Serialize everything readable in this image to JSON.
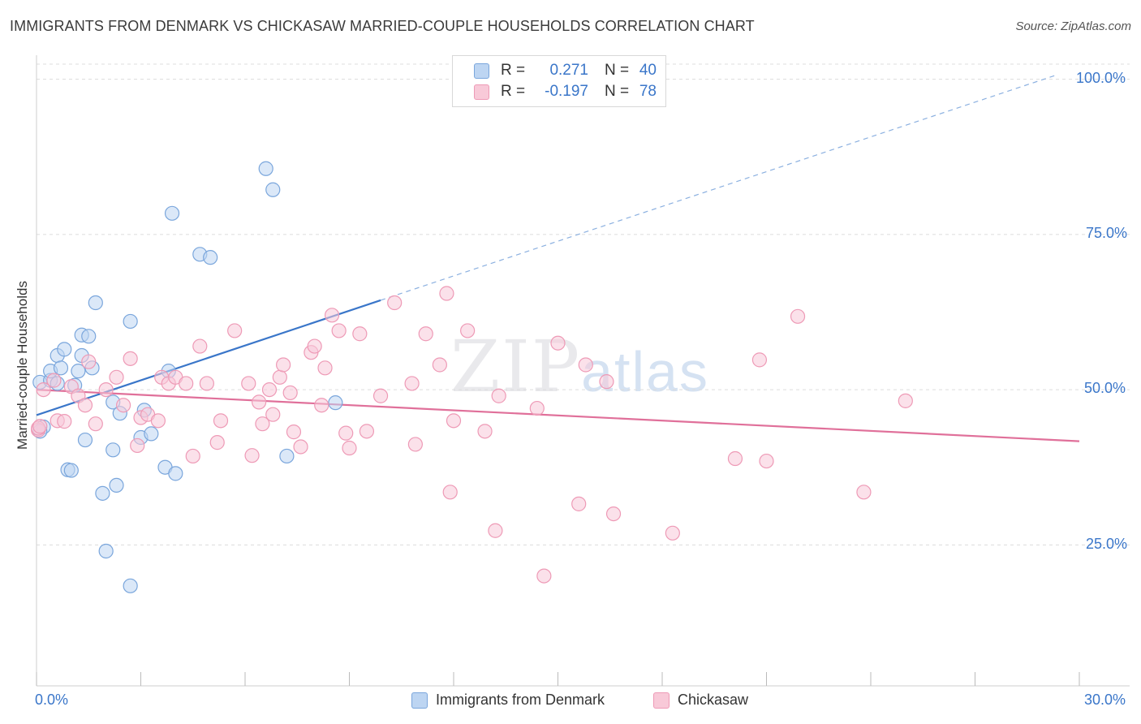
{
  "header": {
    "title": "IMMIGRANTS FROM DENMARK VS CHICKASAW MARRIED-COUPLE HOUSEHOLDS CORRELATION CHART",
    "source": "Source: ZipAtlas.com"
  },
  "watermark": {
    "zip": "ZIP",
    "atlas": "atlas"
  },
  "legend": {
    "r_label": "R =",
    "n_label": "N =",
    "series": [
      {
        "name": "Immigrants from Denmark",
        "r": "0.271",
        "n": "40",
        "fill": "#bdd5f2",
        "stroke": "#7aa6dc"
      },
      {
        "name": "Chickasaw",
        "r": "-0.197",
        "n": "78",
        "fill": "#f8c9d8",
        "stroke": "#ee9ab6"
      }
    ]
  },
  "chart_data": {
    "type": "scatter",
    "title": "IMMIGRANTS FROM DENMARK VS CHICKASAW MARRIED-COUPLE HOUSEHOLDS CORRELATION CHART",
    "xlabel": "",
    "ylabel": "Married-couple Households",
    "xlim": [
      0,
      30
    ],
    "ylim": [
      2.3,
      102.3
    ],
    "x_tick_labels": [
      "0.0%",
      "30.0%"
    ],
    "y_tick_labels": [
      "25.0%",
      "50.0%",
      "75.0%",
      "100.0%"
    ],
    "y_ticks": [
      25,
      50,
      75,
      100
    ],
    "grid": true,
    "series": [
      {
        "name": "Immigrants from Denmark",
        "color": "#3a76c9",
        "points": [
          [
            0.1,
            51.2
          ],
          [
            0.4,
            51.5
          ],
          [
            0.4,
            53.0
          ],
          [
            0.6,
            55.5
          ],
          [
            0.7,
            53.5
          ],
          [
            0.8,
            56.5
          ],
          [
            0.6,
            51.0
          ],
          [
            1.1,
            50.7
          ],
          [
            1.2,
            53.0
          ],
          [
            1.3,
            55.5
          ],
          [
            1.4,
            41.9
          ],
          [
            1.3,
            58.8
          ],
          [
            1.5,
            58.6
          ],
          [
            1.6,
            53.5
          ],
          [
            0.9,
            37.1
          ],
          [
            1.0,
            37.0
          ],
          [
            1.7,
            64.0
          ],
          [
            1.9,
            33.3
          ],
          [
            2.0,
            24.0
          ],
          [
            2.2,
            48.0
          ],
          [
            2.2,
            40.3
          ],
          [
            2.3,
            34.6
          ],
          [
            2.4,
            46.2
          ],
          [
            2.7,
            18.4
          ],
          [
            2.7,
            61.0
          ],
          [
            3.0,
            42.3
          ],
          [
            3.1,
            46.7
          ],
          [
            3.3,
            42.9
          ],
          [
            3.7,
            37.5
          ],
          [
            3.8,
            53.0
          ],
          [
            3.9,
            78.4
          ],
          [
            4.0,
            36.5
          ],
          [
            4.7,
            71.8
          ],
          [
            5.0,
            71.3
          ],
          [
            6.6,
            85.6
          ],
          [
            6.8,
            82.2
          ],
          [
            7.2,
            39.3
          ],
          [
            8.6,
            47.9
          ],
          [
            0.2,
            44.0
          ],
          [
            0.1,
            43.3
          ]
        ],
        "trend": {
          "x0": 0,
          "y0": 45.9,
          "x1": 9.9,
          "y1": 64.4,
          "dash_x1": 29.3,
          "dash_y1": 100.6
        }
      },
      {
        "name": "Chickasaw",
        "color": "#e0709a",
        "points": [
          [
            0.2,
            50.0
          ],
          [
            0.5,
            51.5
          ],
          [
            0.6,
            45.0
          ],
          [
            0.8,
            44.9
          ],
          [
            1.0,
            50.5
          ],
          [
            1.2,
            49.0
          ],
          [
            1.4,
            47.5
          ],
          [
            1.5,
            54.5
          ],
          [
            1.7,
            44.5
          ],
          [
            2.0,
            50.0
          ],
          [
            2.3,
            52.0
          ],
          [
            2.5,
            47.5
          ],
          [
            2.7,
            55.0
          ],
          [
            2.9,
            41.0
          ],
          [
            3.0,
            45.5
          ],
          [
            3.2,
            46.0
          ],
          [
            3.5,
            45.0
          ],
          [
            3.6,
            52.0
          ],
          [
            3.8,
            51.0
          ],
          [
            4.0,
            52.0
          ],
          [
            4.3,
            51.0
          ],
          [
            4.5,
            39.3
          ],
          [
            4.7,
            57.0
          ],
          [
            4.9,
            51.0
          ],
          [
            5.2,
            41.5
          ],
          [
            5.3,
            45.0
          ],
          [
            5.7,
            59.5
          ],
          [
            6.1,
            51.0
          ],
          [
            6.2,
            39.4
          ],
          [
            6.4,
            48.0
          ],
          [
            6.5,
            44.5
          ],
          [
            6.7,
            50.0
          ],
          [
            6.8,
            46.0
          ],
          [
            7.0,
            52.0
          ],
          [
            7.1,
            54.0
          ],
          [
            7.3,
            49.5
          ],
          [
            7.4,
            43.2
          ],
          [
            7.6,
            40.8
          ],
          [
            7.9,
            56.0
          ],
          [
            8.0,
            57.0
          ],
          [
            8.2,
            47.5
          ],
          [
            8.3,
            53.5
          ],
          [
            8.5,
            62.0
          ],
          [
            8.7,
            59.5
          ],
          [
            8.9,
            43.0
          ],
          [
            9.0,
            40.6
          ],
          [
            9.3,
            59.0
          ],
          [
            9.5,
            43.3
          ],
          [
            9.9,
            49.0
          ],
          [
            10.3,
            64.0
          ],
          [
            10.8,
            51.0
          ],
          [
            10.9,
            41.2
          ],
          [
            11.2,
            59.0
          ],
          [
            11.6,
            54.0
          ],
          [
            11.8,
            65.5
          ],
          [
            11.9,
            33.5
          ],
          [
            12.0,
            45.0
          ],
          [
            12.4,
            59.5
          ],
          [
            12.9,
            43.3
          ],
          [
            13.2,
            27.3
          ],
          [
            13.3,
            49.0
          ],
          [
            14.4,
            47.0
          ],
          [
            14.6,
            20.0
          ],
          [
            15.0,
            57.5
          ],
          [
            15.6,
            31.6
          ],
          [
            15.8,
            54.0
          ],
          [
            16.4,
            51.3
          ],
          [
            16.6,
            30.0
          ],
          [
            18.3,
            26.9
          ],
          [
            20.1,
            38.9
          ],
          [
            20.8,
            54.8
          ],
          [
            21.0,
            38.5
          ],
          [
            21.9,
            61.8
          ],
          [
            23.8,
            33.5
          ],
          [
            25.0,
            48.2
          ],
          [
            0.05,
            43.5
          ],
          [
            0.05,
            43.8
          ],
          [
            0.1,
            44.1
          ]
        ],
        "trend": {
          "x0": 0,
          "y0": 50.0,
          "x1": 30.0,
          "y1": 41.7
        }
      }
    ]
  }
}
